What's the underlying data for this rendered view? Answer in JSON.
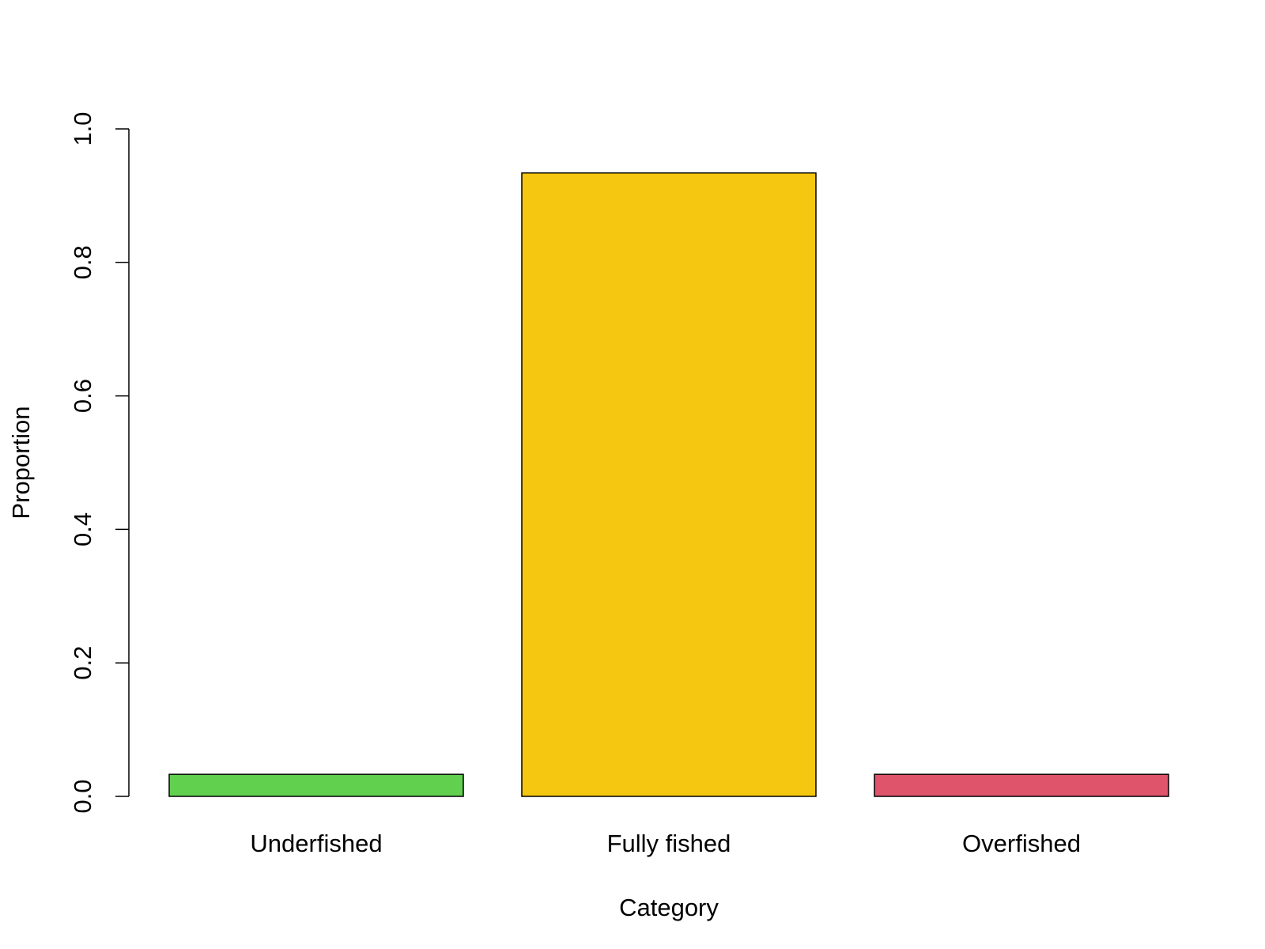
{
  "chart_data": {
    "type": "bar",
    "title": "",
    "xlabel": "Category",
    "ylabel": "Proportion",
    "categories": [
      "Underfished",
      "Fully fished",
      "Overfished"
    ],
    "values": [
      0.033,
      0.934,
      0.033
    ],
    "colors": [
      "#61d04f",
      "#f5c710",
      "#df536b"
    ],
    "ylim": [
      0,
      1
    ],
    "yticks": [
      0,
      0.2,
      0.4,
      0.6,
      0.8,
      1
    ],
    "ytick_labels": [
      "0.0",
      "0.2",
      "0.4",
      "0.6",
      "0.8",
      "1.0"
    ],
    "grid": false,
    "legend": "none",
    "bar_border_color": "#000000"
  }
}
